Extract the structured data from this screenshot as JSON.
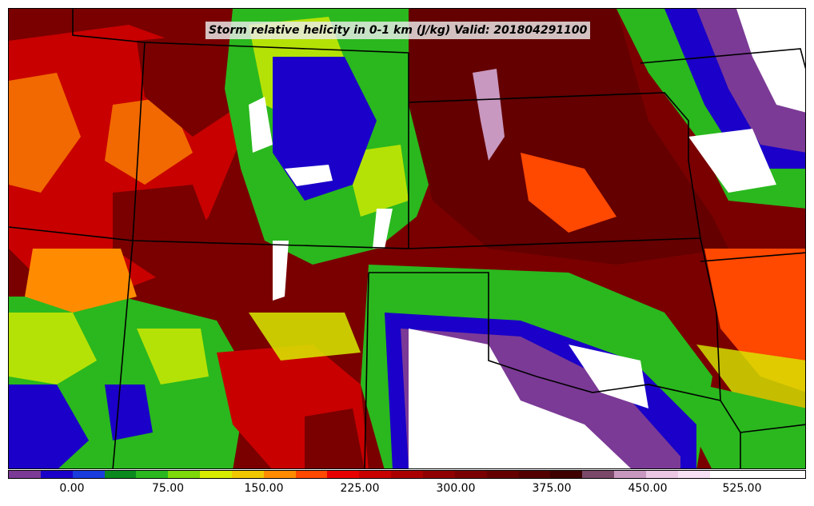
{
  "title": "Storm relative helicity in 0-1 km (J/kg) Valid: 201804291100",
  "colorbar": {
    "colors": [
      "#7b3a96",
      "#1a00c8",
      "#1a3cdc",
      "#0a8a1e",
      "#2ab81e",
      "#7ed80a",
      "#d8ec00",
      "#f0c800",
      "#ff8c00",
      "#ff4800",
      "#e80000",
      "#c80000",
      "#aa0000",
      "#900000",
      "#7a0000",
      "#640000",
      "#520000",
      "#3e0000",
      "#7a4868",
      "#c898c0",
      "#ecc8e4",
      "#f8e0f4",
      "#ffffff",
      "#ffffff",
      "#ffffff"
    ],
    "tick_labels": [
      "0.00",
      "75.00",
      "150.00",
      "225.00",
      "300.00",
      "375.00",
      "450.00",
      "525.00"
    ]
  },
  "map_fill_colors": {
    "high": "#7a0000",
    "mid_high": "#c80000",
    "mid": "#ff8c00",
    "yellow": "#d8ec00",
    "green": "#2ab81e",
    "dark_green": "#0a8a1e",
    "blue": "#1a00c8",
    "purple": "#7b3a96",
    "pink": "#c898c0",
    "white": "#ffffff"
  }
}
